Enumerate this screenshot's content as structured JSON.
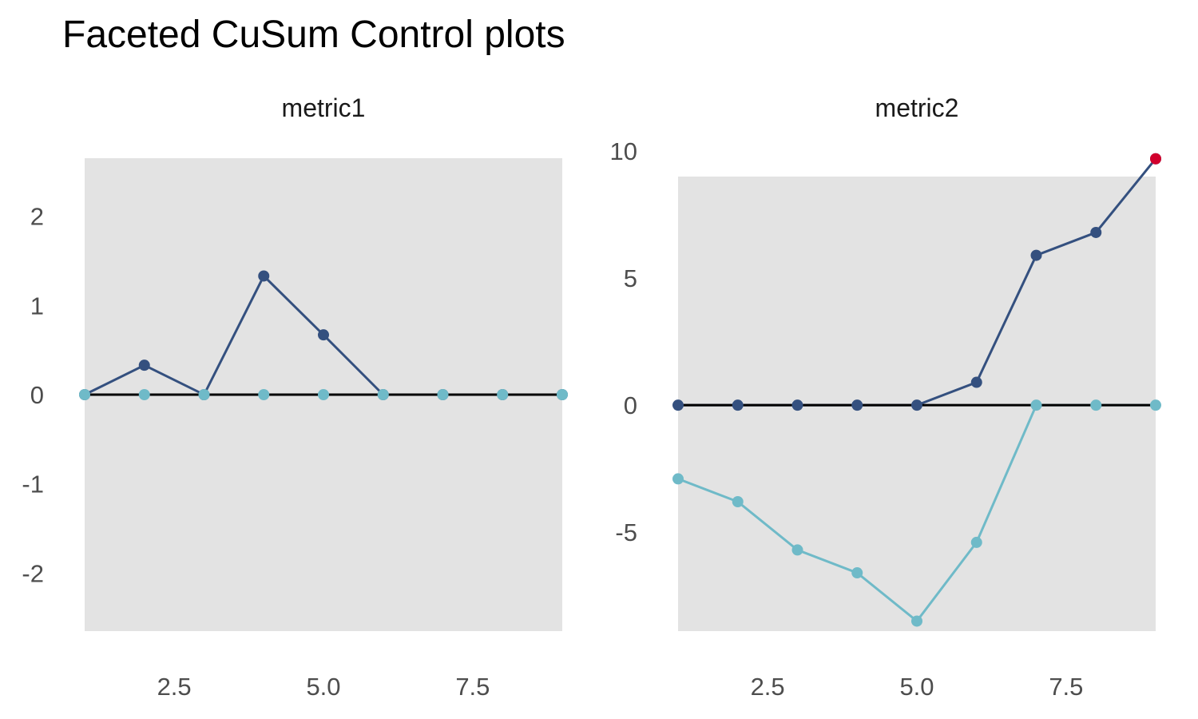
{
  "title": "Faceted CuSum Control plots",
  "colors": {
    "panel_bg": "#e3e3e3",
    "upper_series": "#34507f",
    "lower_series": "#6fbac8",
    "zero_line": "#000000",
    "violation_point": "#d1002d"
  },
  "chart_data": [
    {
      "type": "line",
      "facet": "metric1",
      "x": [
        1,
        2,
        3,
        4,
        5,
        6,
        7,
        8,
        9
      ],
      "series": [
        {
          "role": "upper",
          "values": [
            0,
            0.33,
            0,
            1.33,
            0.67,
            0,
            0,
            0,
            0
          ]
        },
        {
          "role": "lower",
          "values": [
            0,
            0,
            0,
            0,
            0,
            0,
            0,
            0,
            0
          ]
        }
      ],
      "baseline": 0,
      "xlim": [
        1,
        9
      ],
      "ylim": [
        -2.65,
        2.65
      ],
      "xticks": [
        "2.5",
        "5.0",
        "7.5"
      ],
      "yticks": [
        "-2",
        "-1",
        "0",
        "1",
        "2"
      ],
      "grid": false
    },
    {
      "type": "line",
      "facet": "metric2",
      "x": [
        1,
        2,
        3,
        4,
        5,
        6,
        7,
        8,
        9
      ],
      "series": [
        {
          "role": "upper",
          "values": [
            0,
            0,
            0,
            0,
            0,
            0.9,
            5.9,
            6.8,
            9.7
          ]
        },
        {
          "role": "lower",
          "values": [
            -2.9,
            -3.8,
            -5.7,
            -6.6,
            -8.5,
            -5.4,
            0,
            0,
            0
          ]
        }
      ],
      "highlighted_points": [
        {
          "x": 9,
          "y": 9.7
        }
      ],
      "baseline": 0,
      "xlim": [
        1,
        9
      ],
      "ylim": [
        -8.8,
        9.0
      ],
      "xticks": [
        "2.5",
        "5.0",
        "7.5"
      ],
      "yticks": [
        "-5",
        "0",
        "5",
        "10"
      ],
      "grid": false
    }
  ]
}
